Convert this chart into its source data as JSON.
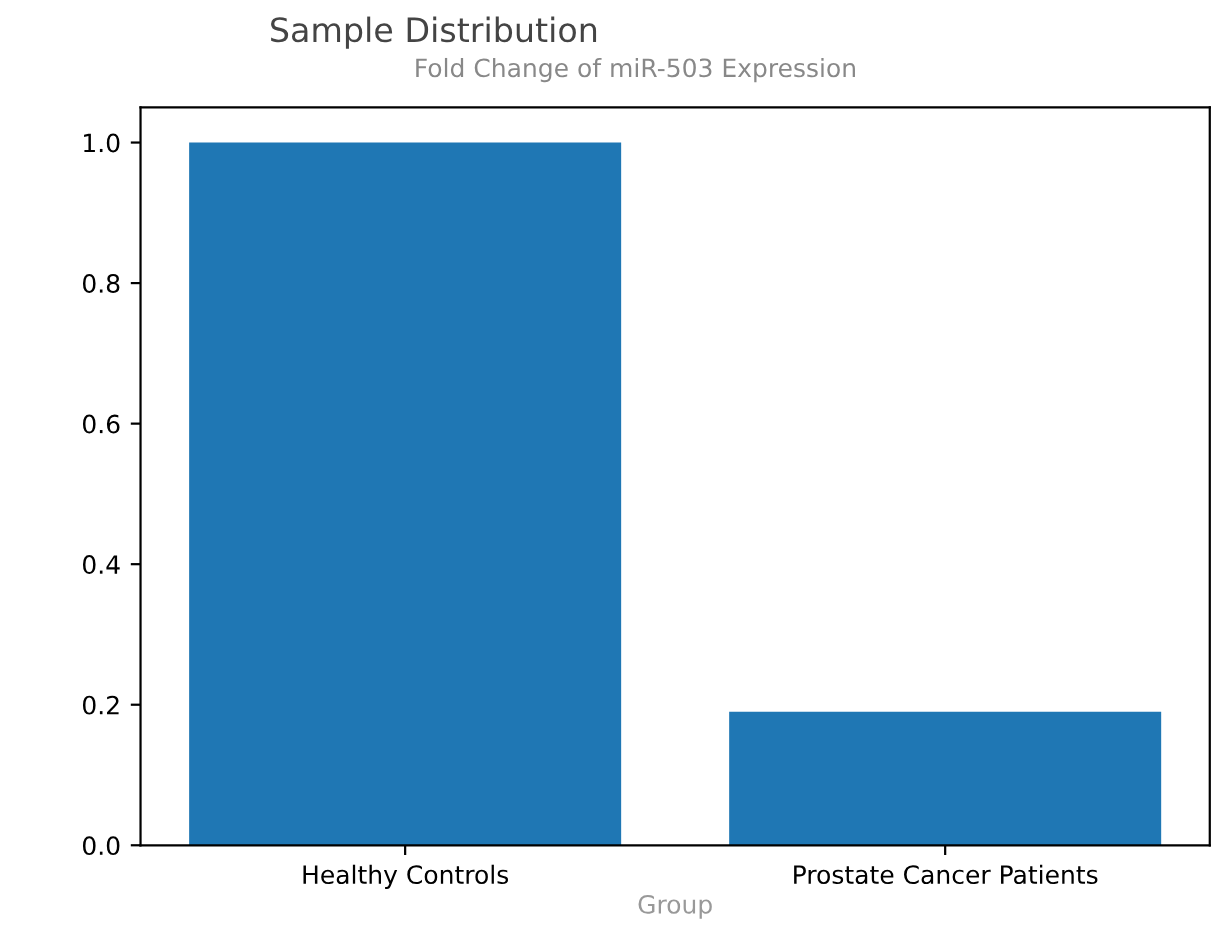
{
  "chart_data": {
    "type": "bar",
    "title": "Sample Distribution",
    "subtitle": "Fold Change of miR-503 Expression",
    "xlabel": "Group",
    "categories": [
      "Healthy Controls",
      "Prostate Cancer Patients"
    ],
    "values": [
      1.0,
      0.19
    ],
    "color": "#1f77b4",
    "ylim": [
      0,
      1.05
    ],
    "yticks": [
      {
        "value": 0,
        "label": "0.0"
      },
      {
        "value": 0.2,
        "label": "0.2"
      },
      {
        "value": 0.4,
        "label": "0.4"
      },
      {
        "value": 0.6,
        "label": "0.6"
      },
      {
        "value": 0.8,
        "label": "0.8"
      },
      {
        "value": 1,
        "label": "1.0"
      }
    ],
    "grid": false
  }
}
